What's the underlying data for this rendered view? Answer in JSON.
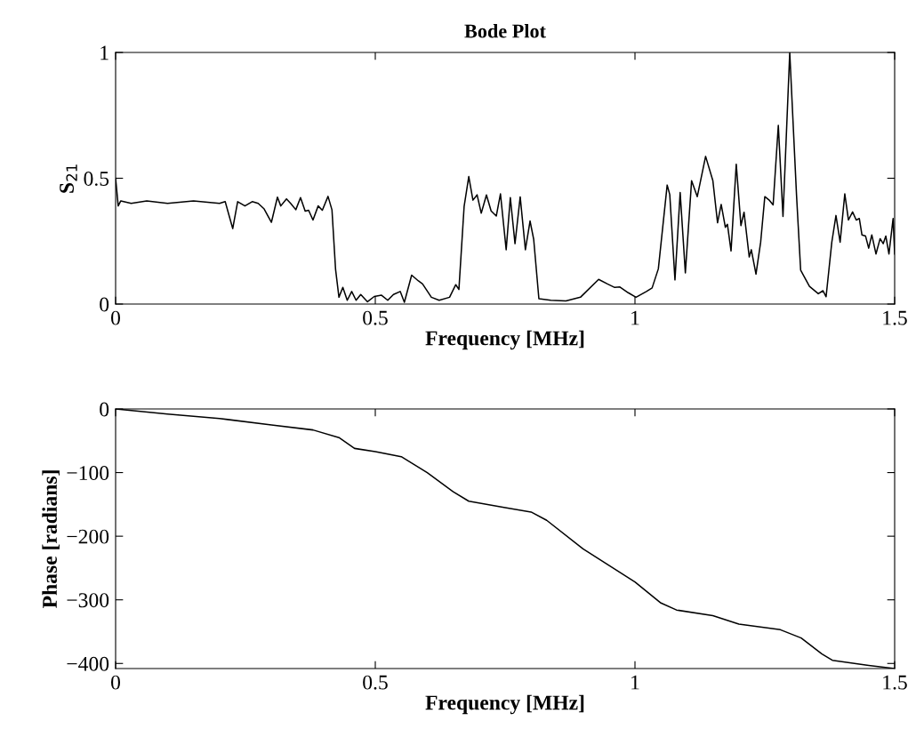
{
  "chart_data": [
    {
      "type": "line",
      "title": "Bode Plot",
      "xlabel": "Frequency [MHz]",
      "ylabel": "S$_{21}$",
      "xlim": [
        0,
        1.5
      ],
      "xticks": [
        0,
        0.5,
        1,
        1.5
      ],
      "ylim": [
        0,
        1
      ],
      "yticks": [
        0,
        0.5,
        1
      ],
      "grid": false,
      "legend": false,
      "series": [
        {
          "color": "#000000",
          "x": [
            0,
            0.005,
            0.01,
            0.03,
            0.06,
            0.1,
            0.15,
            0.2,
            0.211,
            0.2255,
            0.235,
            0.249,
            0.263,
            0.2745,
            0.286,
            0.3,
            0.3116,
            0.318,
            0.329,
            0.337,
            0.347,
            0.356,
            0.365,
            0.3716,
            0.38,
            0.39,
            0.398,
            0.409,
            0.4166,
            0.4235,
            0.43,
            0.4375,
            0.446,
            0.4546,
            0.463,
            0.472,
            0.485,
            0.498,
            0.512,
            0.524,
            0.535,
            0.548,
            0.556,
            0.57,
            0.583,
            0.591,
            0.608,
            0.623,
            0.643,
            0.655,
            0.661,
            0.671,
            0.68,
            0.688,
            0.696,
            0.704,
            0.714,
            0.723,
            0.733,
            0.741,
            0.752,
            0.76,
            0.769,
            0.779,
            0.789,
            0.798,
            0.805,
            0.815,
            0.838,
            0.867,
            0.895,
            0.93,
            0.947,
            0.961,
            0.971,
            0.987,
            1.002,
            1.022,
            1.033,
            1.045,
            1.062,
            1.067,
            1.077,
            1.087,
            1.097,
            1.109,
            1.12,
            1.136,
            1.15,
            1.159,
            1.166,
            1.174,
            1.178,
            1.185,
            1.195,
            1.204,
            1.21,
            1.22,
            1.224,
            1.233,
            1.242,
            1.25,
            1.259,
            1.266,
            1.276,
            1.285,
            1.298,
            1.311,
            1.319,
            1.336,
            1.353,
            1.362,
            1.368,
            1.379,
            1.387,
            1.395,
            1.404,
            1.411,
            1.419,
            1.426,
            1.432,
            1.437,
            1.444,
            1.45,
            1.456,
            1.464,
            1.472,
            1.478,
            1.483,
            1.489,
            1.497,
            1.5
          ],
          "values": [
            0.5,
            0.39,
            0.41,
            0.4,
            0.41,
            0.4,
            0.41,
            0.4,
            0.407,
            0.3,
            0.407,
            0.39,
            0.407,
            0.4,
            0.378,
            0.325,
            0.425,
            0.39,
            0.418,
            0.4,
            0.375,
            0.423,
            0.369,
            0.373,
            0.334,
            0.39,
            0.373,
            0.428,
            0.374,
            0.138,
            0.027,
            0.066,
            0.015,
            0.05,
            0.015,
            0.038,
            0.009,
            0.03,
            0.035,
            0.015,
            0.038,
            0.05,
            0.007,
            0.115,
            0.092,
            0.08,
            0.027,
            0.015,
            0.027,
            0.077,
            0.058,
            0.387,
            0.507,
            0.413,
            0.434,
            0.361,
            0.434,
            0.37,
            0.35,
            0.438,
            0.216,
            0.423,
            0.24,
            0.426,
            0.216,
            0.33,
            0.257,
            0.021,
            0.015,
            0.012,
            0.027,
            0.098,
            0.08,
            0.066,
            0.068,
            0.045,
            0.027,
            0.05,
            0.064,
            0.14,
            0.473,
            0.435,
            0.096,
            0.443,
            0.124,
            0.49,
            0.427,
            0.587,
            0.49,
            0.323,
            0.396,
            0.305,
            0.317,
            0.211,
            0.556,
            0.312,
            0.365,
            0.187,
            0.216,
            0.119,
            0.246,
            0.427,
            0.412,
            0.394,
            0.71,
            0.348,
            1.0,
            0.435,
            0.135,
            0.07,
            0.041,
            0.053,
            0.029,
            0.246,
            0.352,
            0.246,
            0.438,
            0.334,
            0.366,
            0.334,
            0.34,
            0.275,
            0.27,
            0.222,
            0.275,
            0.199,
            0.26,
            0.24,
            0.27,
            0.199,
            0.34,
            0.199
          ]
        }
      ]
    },
    {
      "type": "line",
      "xlabel": "Frequency [MHz]",
      "ylabel": "Phase [radians]",
      "xlim": [
        0,
        1.5
      ],
      "xticks": [
        0,
        0.5,
        1,
        1.5
      ],
      "ylim": [
        -408,
        0
      ],
      "yticks": [
        {
          "value": 0,
          "label": "0"
        },
        {
          "value": -100,
          "label": "−100"
        },
        {
          "value": -200,
          "label": "−200"
        },
        {
          "value": -300,
          "label": "−300"
        },
        {
          "value": -400,
          "label": "−400"
        }
      ],
      "grid": false,
      "legend": false,
      "series": [
        {
          "color": "#000000",
          "x": [
            0,
            0.1,
            0.2,
            0.3,
            0.38,
            0.43,
            0.46,
            0.5,
            0.55,
            0.6,
            0.65,
            0.68,
            0.75,
            0.8,
            0.83,
            0.9,
            1.0,
            1.05,
            1.08,
            1.15,
            1.2,
            1.28,
            1.32,
            1.36,
            1.38,
            1.45,
            1.5
          ],
          "values": [
            0,
            -8,
            -15,
            -25,
            -33,
            -45,
            -62,
            -67,
            -75,
            -100,
            -130,
            -145,
            -155,
            -162,
            -175,
            -220,
            -272,
            -305,
            -316,
            -325,
            -338,
            -347,
            -360,
            -385,
            -395,
            -403,
            -408
          ]
        }
      ]
    }
  ]
}
